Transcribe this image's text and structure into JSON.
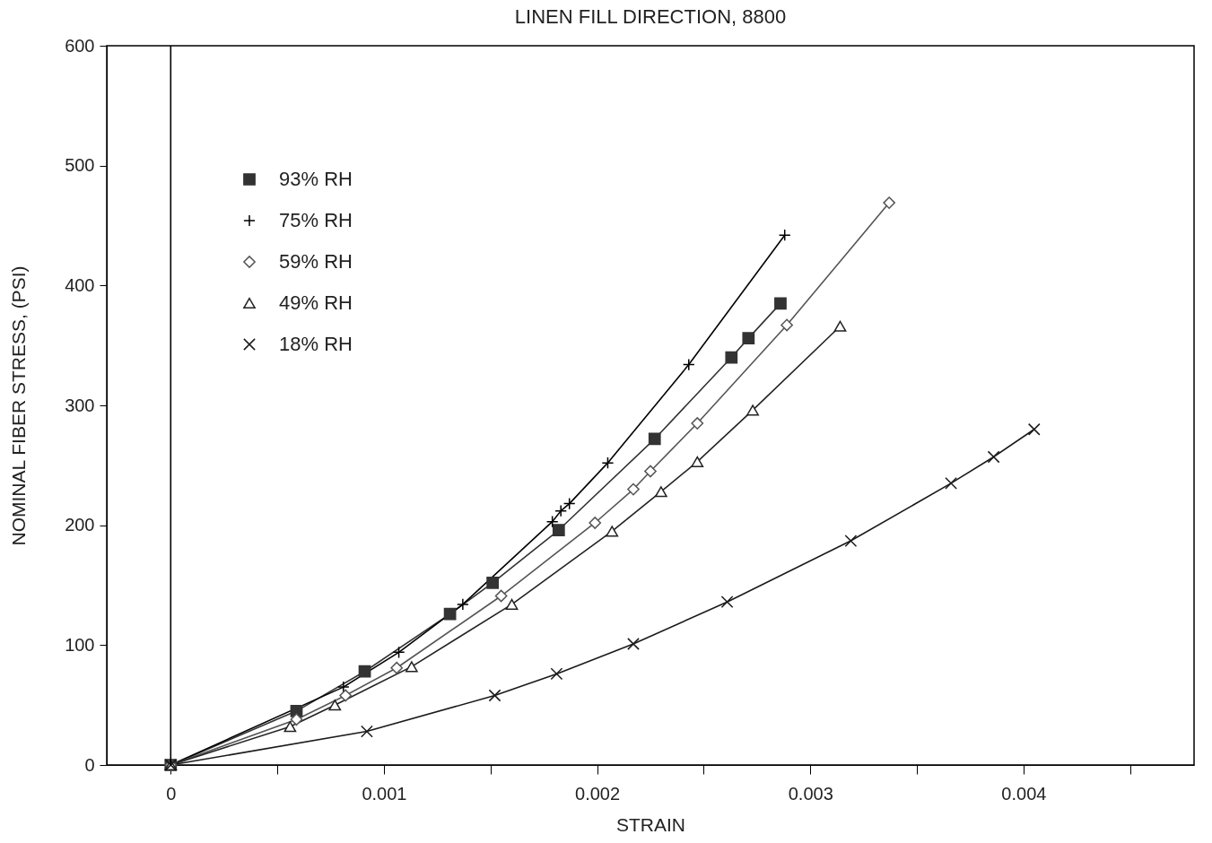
{
  "chart_data": {
    "type": "line",
    "title": "LINEN FILL DIRECTION, 8800",
    "xlabel": "STRAIN",
    "ylabel": "NOMINAL FIBER STRESS, (PSI)",
    "xlim": [
      -0.0003,
      0.0048
    ],
    "ylim": [
      0,
      600
    ],
    "xticks": [
      0,
      {
        "value": 0.0005,
        "label": null
      },
      0.001,
      {
        "value": 0.0015,
        "label": null
      },
      0.002,
      {
        "value": 0.0025,
        "label": null
      },
      0.003,
      {
        "value": 0.0035,
        "label": null
      },
      0.004,
      {
        "value": 0.0045,
        "label": null
      }
    ],
    "yticks": [
      0,
      100,
      200,
      300,
      400,
      500,
      600
    ],
    "grid": false,
    "legend": "top left",
    "line_style": "solid",
    "ref_lines": [
      {
        "axis": "x",
        "value": 0,
        "color": "#000000"
      }
    ],
    "series": [
      {
        "name": "93% RH",
        "color": "#333333",
        "marker": "square",
        "x": [
          0,
          0.00059,
          0.00091,
          0.00131,
          0.00151,
          0.00182,
          0.00227,
          0.00263,
          0.00271,
          0.00286
        ],
        "values": [
          0,
          45,
          78,
          126,
          152,
          196,
          272,
          340,
          356,
          385
        ]
      },
      {
        "name": "75% RH",
        "color": "#000000",
        "marker": "cross",
        "x": [
          0,
          0.00081,
          0.00107,
          0.00137,
          0.00179,
          0.00183,
          0.00187,
          0.00205,
          0.00243,
          0.00288
        ],
        "values": [
          0,
          65,
          94,
          134,
          203,
          212,
          218,
          252,
          334,
          442
        ]
      },
      {
        "name": "59% RH",
        "color": "#555555",
        "marker": "diamond",
        "x": [
          0,
          0.00059,
          0.00082,
          0.00106,
          0.00155,
          0.00199,
          0.00217,
          0.00225,
          0.00247,
          0.00289,
          0.00337
        ],
        "values": [
          0,
          38,
          58,
          81,
          141,
          202,
          230,
          245,
          285,
          367,
          469
        ]
      },
      {
        "name": "49% RH",
        "color": "#222222",
        "marker": "triangle",
        "x": [
          0,
          0.00056,
          0.00077,
          0.00113,
          0.0016,
          0.00207,
          0.0023,
          0.00247,
          0.00273,
          0.00314
        ],
        "values": [
          0,
          32,
          50,
          82,
          134,
          195,
          228,
          253,
          296,
          366
        ]
      },
      {
        "name": "18% RH",
        "color": "#1a1a1a",
        "marker": "x",
        "x": [
          0,
          0.00092,
          0.00152,
          0.00181,
          0.00217,
          0.00261,
          0.00319,
          0.00366,
          0.00386,
          0.00405
        ],
        "values": [
          0,
          28,
          58,
          76,
          101,
          136,
          187,
          235,
          257,
          280
        ]
      }
    ]
  }
}
